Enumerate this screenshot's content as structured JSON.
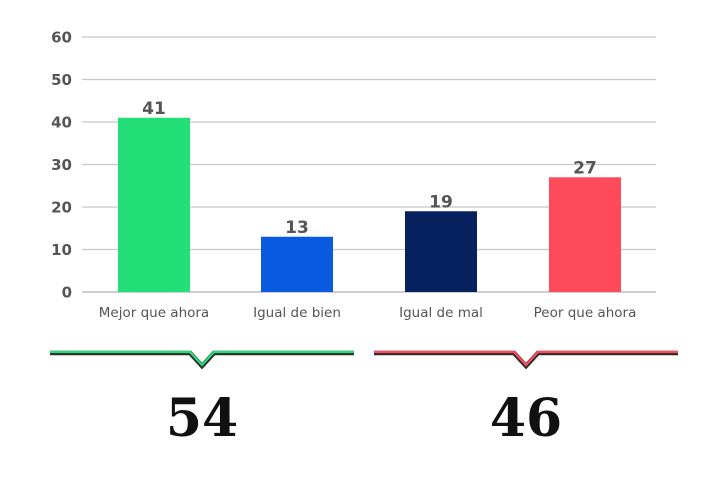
{
  "chart_data": {
    "type": "bar",
    "categories": [
      "Mejor que ahora",
      "Igual de bien",
      "Igual de mal",
      "Peor que ahora"
    ],
    "values": [
      41,
      13,
      19,
      27
    ],
    "colors": [
      "#22e077",
      "#0a5adf",
      "#07205e",
      "#ff4a5a"
    ],
    "ylim": [
      0,
      60
    ],
    "yticks": [
      0,
      10,
      20,
      30,
      40,
      50,
      60
    ],
    "grid": true,
    "title": "",
    "xlabel": "",
    "ylabel": ""
  },
  "groups": [
    {
      "total": "54",
      "color": "#22e077"
    },
    {
      "total": "46",
      "color": "#ff4a5a"
    }
  ]
}
